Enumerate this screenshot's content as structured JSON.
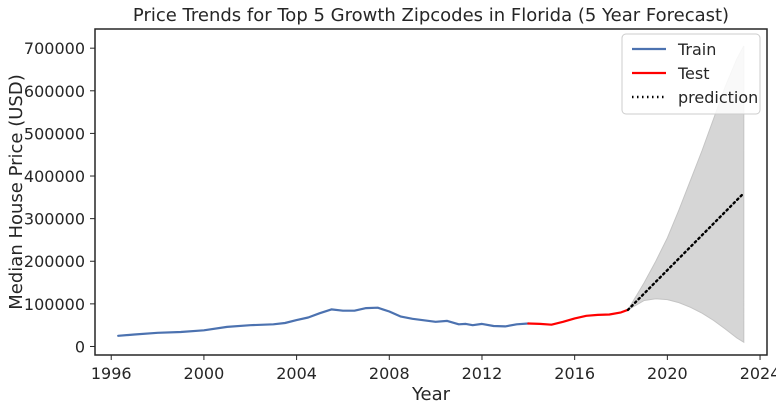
{
  "chart_data": {
    "type": "line",
    "title": "Price Trends for Top 5 Growth Zipcodes in Florida (5 Year Forecast)",
    "xlabel": "Year",
    "ylabel": "Median House Price (USD)",
    "xlim": [
      1995.3,
      2024.3
    ],
    "ylim": [
      -20000,
      745000
    ],
    "xticks": [
      1996,
      2000,
      2004,
      2008,
      2012,
      2016,
      2020,
      2024
    ],
    "yticks": [
      0,
      100000,
      200000,
      300000,
      400000,
      500000,
      600000,
      700000
    ],
    "grid": false,
    "legend_position": "top-right",
    "series": [
      {
        "name": "Train",
        "color": "#4c72b0",
        "style": "solid",
        "x": [
          1996.3,
          1997.0,
          1998.0,
          1999.0,
          2000.0,
          2001.0,
          2002.0,
          2003.0,
          2003.5,
          2004.0,
          2004.5,
          2005.0,
          2005.5,
          2006.0,
          2006.5,
          2007.0,
          2007.5,
          2008.0,
          2008.5,
          2009.0,
          2010.0,
          2010.5,
          2011.0,
          2011.3,
          2011.6,
          2012.0,
          2012.5,
          2013.0,
          2013.5,
          2014.0
        ],
        "y": [
          25000,
          28000,
          32000,
          34000,
          38000,
          46000,
          50000,
          52000,
          55000,
          62000,
          68000,
          78000,
          87000,
          84000,
          84000,
          90000,
          91000,
          82000,
          70000,
          65000,
          58000,
          60000,
          52000,
          53000,
          50000,
          53000,
          48000,
          47000,
          52000,
          54000
        ]
      },
      {
        "name": "Test",
        "color": "#ff0000",
        "style": "solid",
        "x": [
          2014.0,
          2014.5,
          2015.0,
          2015.5,
          2016.0,
          2016.5,
          2017.0,
          2017.5,
          2018.0,
          2018.3
        ],
        "y": [
          54000,
          53000,
          51000,
          58000,
          66000,
          72000,
          74000,
          75000,
          80000,
          86000
        ]
      },
      {
        "name": "prediction",
        "color": "#000000",
        "style": "dotted",
        "x": [
          2018.3,
          2023.3
        ],
        "y": [
          86000,
          360000
        ]
      }
    ],
    "confidence_band": {
      "color": "#d6d6d6",
      "x": [
        2018.3,
        2019.0,
        2019.5,
        2020.0,
        2020.5,
        2021.0,
        2021.5,
        2022.0,
        2022.5,
        2023.0,
        2023.3
      ],
      "upper": [
        86000,
        150000,
        200000,
        255000,
        320000,
        390000,
        460000,
        535000,
        610000,
        675000,
        705000
      ],
      "lower": [
        86000,
        108000,
        112000,
        110000,
        103000,
        92000,
        78000,
        61000,
        41000,
        20000,
        10000
      ]
    }
  }
}
